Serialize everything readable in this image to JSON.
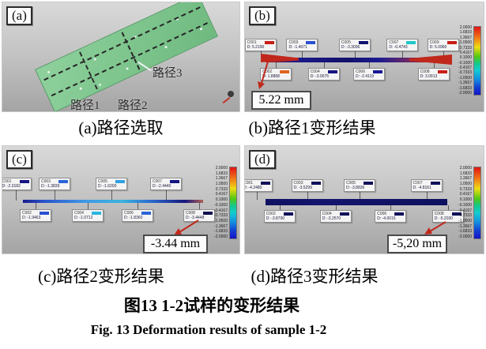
{
  "figure": {
    "title_zh": "图13  1-2试样的变形结果",
    "title_en": "Fig. 13  Deformation results of sample 1-2"
  },
  "colorbar": {
    "ticks": [
      "2.0000",
      "1.6833",
      "1.3667",
      "1.0500",
      "0.7333",
      "0.4167",
      "0.1000",
      "-0.1000",
      "-0.4167",
      "-0.7333",
      "-1.0500",
      "-1.3667",
      "-1.6833",
      "-2.0000"
    ]
  },
  "colors": {
    "accent_red": "#c0281c",
    "plate_green": "#7cc48c",
    "line_navy": "#12106a"
  },
  "panels": {
    "a": {
      "label": "(a)",
      "caption": "(a)路径选取",
      "paths": {
        "p1": "路径1",
        "p2": "路径2",
        "p3": "路径3"
      }
    },
    "b": {
      "label": "(b)",
      "caption": "(b)路径1变形结果",
      "annotation": "5.22 mm",
      "callouts": [
        {
          "id": "C001",
          "value": "D: 5.2190",
          "chip": "#c81e14",
          "x": 6.5,
          "row": "top"
        },
        {
          "id": "C002",
          "value": "D: 1.8868",
          "chip": "#e0641e",
          "x": 13,
          "row": "bottom"
        },
        {
          "id": "C003",
          "value": "D: -1.4071",
          "chip": "#2850d2",
          "x": 24,
          "row": "top"
        },
        {
          "id": "C004",
          "value": "D: -3.0075",
          "chip": "#141482",
          "x": 33,
          "row": "bottom"
        },
        {
          "id": "C005",
          "value": "D: -3.3006",
          "chip": "#10106e",
          "x": 46,
          "row": "top"
        },
        {
          "id": "C006",
          "value": "D: -2.4119",
          "chip": "#181896",
          "x": 52,
          "row": "bottom"
        },
        {
          "id": "C007",
          "value": "D: -0.4743",
          "chip": "#1ec8c8",
          "x": 66,
          "row": "top"
        },
        {
          "id": "C008",
          "value": "D: 3.0913",
          "chip": "#c81e14",
          "x": 79,
          "row": "bottom"
        },
        {
          "id": "C009",
          "value": "D: 5.0960",
          "chip": "#c81e14",
          "x": 83,
          "row": "top"
        }
      ]
    },
    "c": {
      "label": "(c)",
      "caption": "(c)路径2变形结果",
      "annotation": "-3.44 mm",
      "callouts": [
        {
          "id": "C001",
          "value": "D: -2.0182",
          "chip": "#141482",
          "x": 5.5,
          "row": "top"
        },
        {
          "id": "C002",
          "value": "D: -1.9463",
          "chip": "#2850d2",
          "x": 14,
          "row": "bottom"
        },
        {
          "id": "C003",
          "value": "D: -1.3839",
          "chip": "#2a64d8",
          "x": 22,
          "row": "top"
        },
        {
          "id": "C004",
          "value": "D: -1.0712",
          "chip": "#2ab4e0",
          "x": 36,
          "row": "bottom"
        },
        {
          "id": "C005",
          "value": "D: -1.6200",
          "chip": "#30a0e0",
          "x": 46,
          "row": "top"
        },
        {
          "id": "C006",
          "value": "D: -1.8360",
          "chip": "#2a64d8",
          "x": 57,
          "row": "bottom"
        },
        {
          "id": "C007",
          "value": "D: -2.4440",
          "chip": "#141482",
          "x": 69,
          "row": "top"
        },
        {
          "id": "C008",
          "value": "D: -3.4448",
          "chip": "#10104f",
          "x": 83,
          "row": "bottom"
        }
      ]
    },
    "d": {
      "label": "(d)",
      "caption": "(d)路径3变形结果",
      "annotation": "-5,20 mm",
      "callouts": [
        {
          "id": "C001",
          "value": "D: -4.2480",
          "chip": "#10105a",
          "x": 5,
          "row": "top"
        },
        {
          "id": "C002",
          "value": "D: -3.8790",
          "chip": "#10105a",
          "x": 14.5,
          "row": "bottom"
        },
        {
          "id": "C003",
          "value": "D: -3.5299",
          "chip": "#10105a",
          "x": 26,
          "row": "top"
        },
        {
          "id": "C004",
          "value": "D: -3.2570",
          "chip": "#10105a",
          "x": 38,
          "row": "bottom"
        },
        {
          "id": "C005",
          "value": "D: -3.8836",
          "chip": "#10105a",
          "x": 48,
          "row": "top"
        },
        {
          "id": "C006",
          "value": "D: -4.0015",
          "chip": "#10105a",
          "x": 61,
          "row": "bottom"
        },
        {
          "id": "C007",
          "value": "D: -4.8161",
          "chip": "#10105a",
          "x": 76,
          "row": "top"
        },
        {
          "id": "C008",
          "value": "D: -5.2030",
          "chip": "#10105a",
          "x": 85,
          "row": "bottom"
        }
      ]
    }
  }
}
